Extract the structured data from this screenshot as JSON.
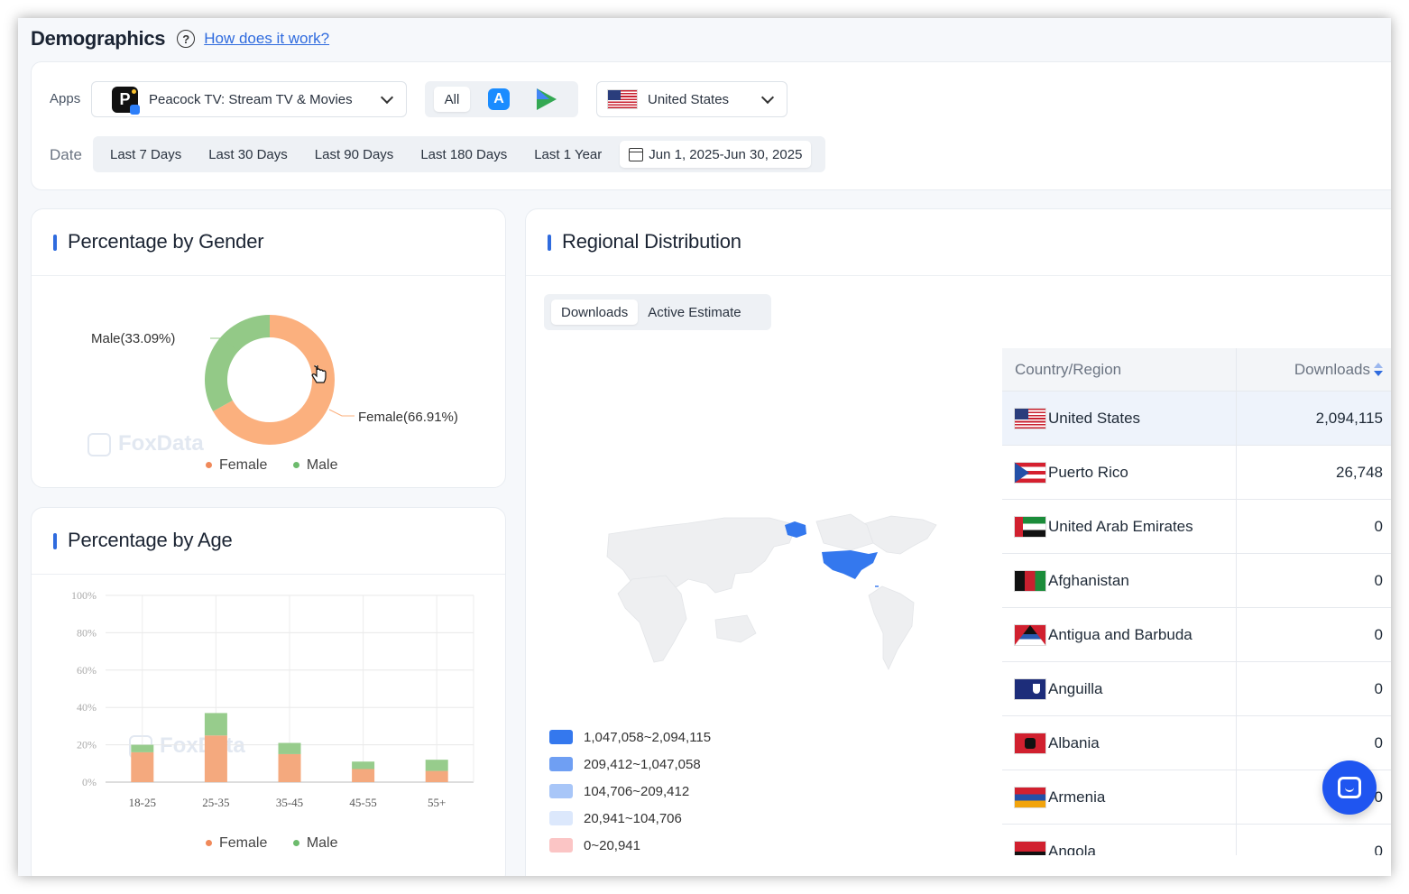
{
  "header": {
    "title": "Demographics",
    "help_link": "How does it work?"
  },
  "filters": {
    "apps_label": "Apps",
    "app_name": "Peacock TV: Stream TV & Movies",
    "platform_all": "All",
    "country": "United States",
    "date_label": "Date",
    "date_options": [
      "Last 7 Days",
      "Last 30 Days",
      "Last 90 Days",
      "Last 180 Days",
      "Last 1 Year"
    ],
    "date_range": "Jun 1, 2025-Jun 30, 2025"
  },
  "gender": {
    "title": "Percentage by Gender",
    "watermark": "FoxData",
    "colors": {
      "female": "#fbb07e",
      "male": "#93c987"
    },
    "legend": [
      "Female",
      "Male"
    ]
  },
  "age": {
    "title": "Percentage by Age",
    "watermark": "FoxData",
    "legend": [
      "Female",
      "Male"
    ]
  },
  "regional": {
    "title": "Regional Distribution",
    "tabs": [
      "Downloads",
      "Active Estimate"
    ],
    "legend": [
      {
        "label": "1,047,058~2,094,115",
        "color": "#3478ee"
      },
      {
        "label": "209,412~1,047,058",
        "color": "#6f9ff3"
      },
      {
        "label": "104,706~209,412",
        "color": "#a8c6f8"
      },
      {
        "label": "20,941~104,706",
        "color": "#dce8fc"
      },
      {
        "label": "0~20,941",
        "color": "#fbc5c5"
      }
    ],
    "table": {
      "col_country": "Country/Region",
      "col_downloads": "Downloads",
      "rows": [
        {
          "country": "United States",
          "downloads": "2,094,115"
        },
        {
          "country": "Puerto Rico",
          "downloads": "26,748"
        },
        {
          "country": "United Arab Emirates",
          "downloads": "0"
        },
        {
          "country": "Afghanistan",
          "downloads": "0"
        },
        {
          "country": "Antigua and Barbuda",
          "downloads": "0"
        },
        {
          "country": "Anguilla",
          "downloads": "0"
        },
        {
          "country": "Albania",
          "downloads": "0"
        },
        {
          "country": "Armenia",
          "downloads": "0"
        },
        {
          "country": "Angola",
          "downloads": "0"
        }
      ]
    }
  },
  "chart_data": [
    {
      "type": "pie",
      "title": "Percentage by Gender",
      "categories": [
        "Female",
        "Male"
      ],
      "values": [
        66.91,
        33.09
      ],
      "labels": [
        "Female(66.91%)",
        "Male(33.09%)"
      ],
      "legend": "bottom"
    },
    {
      "type": "bar",
      "title": "Percentage by Age",
      "categories": [
        "18-25",
        "25-35",
        "35-45",
        "45-55",
        "55+"
      ],
      "series": [
        {
          "name": "Female",
          "values": [
            16,
            25,
            15,
            7,
            6
          ]
        },
        {
          "name": "Male",
          "values": [
            4,
            12,
            6,
            4,
            6
          ]
        }
      ],
      "yticks": [
        "0%",
        "20%",
        "40%",
        "60%",
        "80%",
        "100%"
      ],
      "ylim": [
        0,
        100
      ],
      "stacked": true,
      "legend": "bottom"
    }
  ]
}
